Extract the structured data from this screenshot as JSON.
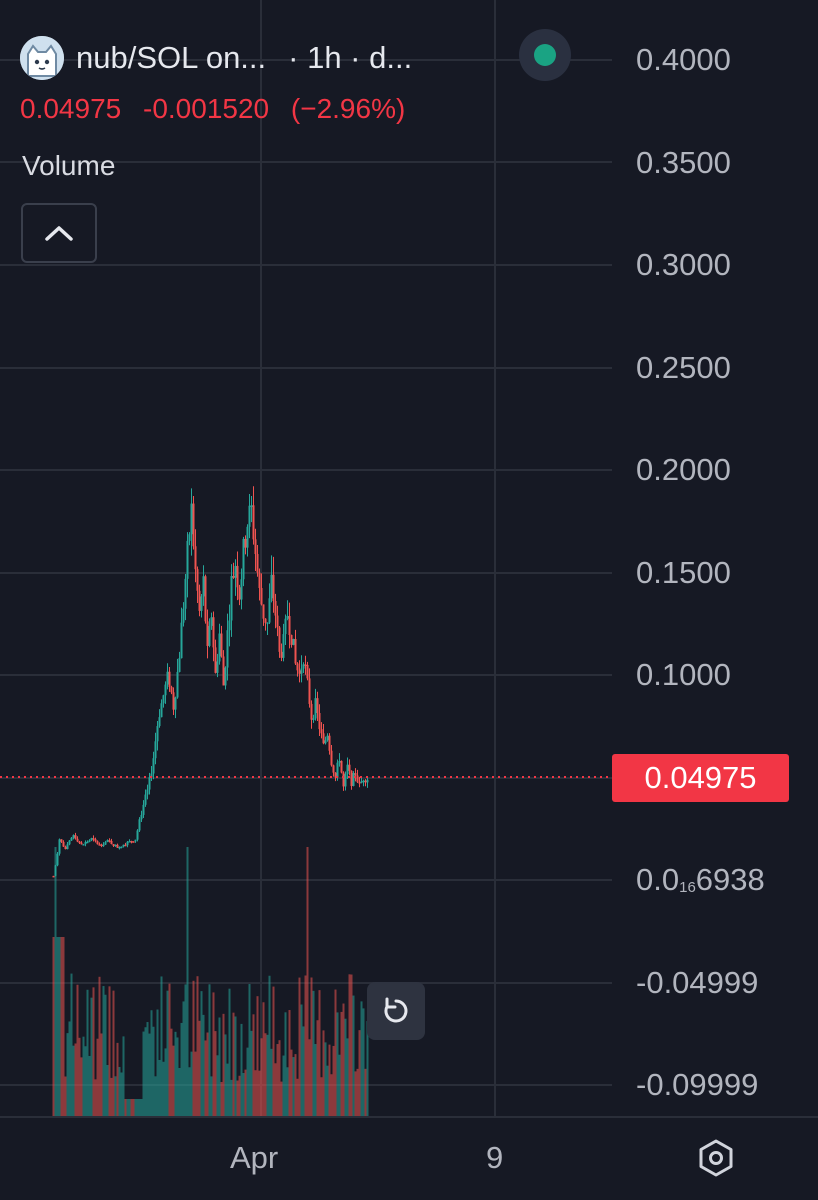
{
  "header": {
    "pair_title": "nub/SOL on...",
    "interval_text": "· 1h · d..."
  },
  "price_line": {
    "last": "0.04975",
    "change": "-0.001520",
    "change_pct": "(−2.96%)"
  },
  "volume_label": "Volume",
  "last_price_tag": "0.04975",
  "colors": {
    "background": "#161924",
    "up": "#26a69a",
    "down": "#ef5350",
    "grid": "#2a2e39",
    "live_dot": "#1aa383"
  },
  "chart_data": {
    "type": "candlestick",
    "y_ticks": [
      "0.4000",
      "0.3500",
      "0.3000",
      "0.2500",
      "0.2000",
      "0.1500",
      "0.1000",
      "0.04975"
    ],
    "y_ticks_low": [
      "-0.04999",
      "-0.09999"
    ],
    "y_tick_special": {
      "prefix": "0.0",
      "sub": "16",
      "suffix": "6938"
    },
    "x_ticks": [
      "Apr",
      "9"
    ],
    "ylim": [
      -0.1,
      0.4
    ],
    "last_price": 0.04975,
    "price_profile": [
      [
        0,
        0.002
      ],
      [
        3,
        0.01
      ],
      [
        6,
        0.02
      ],
      [
        12,
        0.015
      ],
      [
        20,
        0.022
      ],
      [
        28,
        0.017
      ],
      [
        38,
        0.02
      ],
      [
        46,
        0.017
      ],
      [
        55,
        0.019
      ],
      [
        64,
        0.016
      ],
      [
        73,
        0.018
      ],
      [
        82,
        0.02
      ],
      [
        89,
        0.035
      ],
      [
        95,
        0.045
      ],
      [
        100,
        0.06
      ],
      [
        105,
        0.08
      ],
      [
        110,
        0.09
      ],
      [
        115,
        0.1
      ],
      [
        120,
        0.085
      ],
      [
        125,
        0.105
      ],
      [
        130,
        0.135
      ],
      [
        135,
        0.165
      ],
      [
        138,
        0.18
      ],
      [
        142,
        0.15
      ],
      [
        146,
        0.13
      ],
      [
        150,
        0.145
      ],
      [
        154,
        0.11
      ],
      [
        158,
        0.13
      ],
      [
        162,
        0.1
      ],
      [
        166,
        0.12
      ],
      [
        170,
        0.095
      ],
      [
        174,
        0.12
      ],
      [
        178,
        0.145
      ],
      [
        182,
        0.155
      ],
      [
        186,
        0.14
      ],
      [
        190,
        0.16
      ],
      [
        194,
        0.175
      ],
      [
        198,
        0.18
      ],
      [
        202,
        0.16
      ],
      [
        206,
        0.14
      ],
      [
        210,
        0.13
      ],
      [
        214,
        0.125
      ],
      [
        218,
        0.145
      ],
      [
        222,
        0.13
      ],
      [
        226,
        0.11
      ],
      [
        230,
        0.115
      ],
      [
        234,
        0.13
      ],
      [
        238,
        0.12
      ],
      [
        242,
        0.105
      ],
      [
        246,
        0.1
      ],
      [
        250,
        0.11
      ],
      [
        254,
        0.095
      ],
      [
        258,
        0.08
      ],
      [
        262,
        0.085
      ],
      [
        266,
        0.075
      ],
      [
        270,
        0.065
      ],
      [
        274,
        0.072
      ],
      [
        278,
        0.058
      ],
      [
        282,
        0.05
      ],
      [
        286,
        0.06
      ],
      [
        290,
        0.045
      ],
      [
        294,
        0.055
      ],
      [
        298,
        0.048
      ],
      [
        302,
        0.052
      ],
      [
        306,
        0.046
      ],
      [
        310,
        0.05
      ],
      [
        313,
        0.04975
      ]
    ]
  }
}
